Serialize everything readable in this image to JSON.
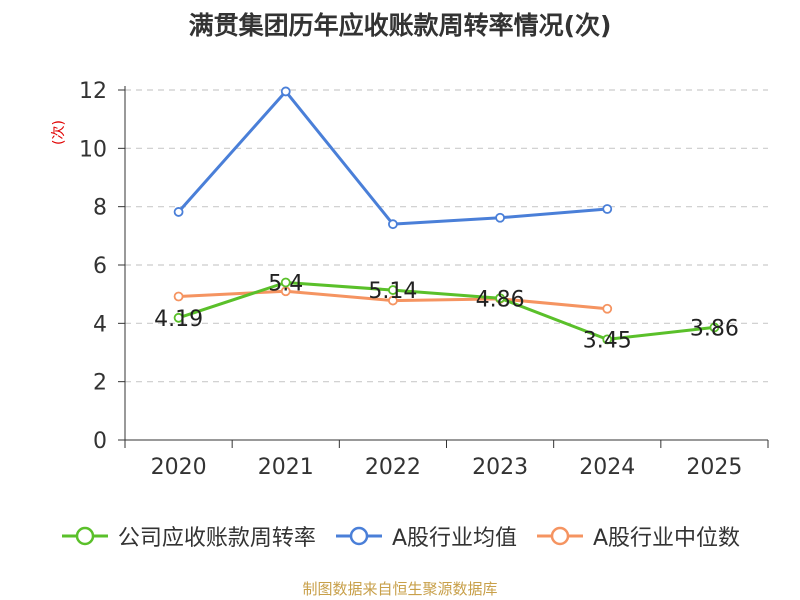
{
  "chart_data": {
    "type": "line",
    "title": "满贯集团历年应收账款周转率情况(次)",
    "ylabel": "(次)",
    "xlabel": "",
    "categories": [
      "2020",
      "2021",
      "2022",
      "2023",
      "2024",
      "2025"
    ],
    "ylim": [
      0,
      12
    ],
    "yticks": [
      0,
      2,
      4,
      6,
      8,
      10,
      12
    ],
    "grid": true,
    "legend_position": "bottom",
    "series": [
      {
        "name": "公司应收账款周转率",
        "color": "#5ac02a",
        "values": [
          4.19,
          5.4,
          5.14,
          4.86,
          3.45,
          3.86
        ],
        "data_labels": [
          "4.19",
          "5.4",
          "5.14",
          "4.86",
          "3.45",
          "3.86"
        ]
      },
      {
        "name": "A股行业均值",
        "color": "#4a7fd8",
        "values": [
          7.82,
          11.95,
          7.4,
          7.62,
          7.92,
          null
        ]
      },
      {
        "name": "A股行业中位数",
        "color": "#f59461",
        "values": [
          4.92,
          5.1,
          4.78,
          4.84,
          4.5,
          null
        ]
      }
    ],
    "source": "制图数据来自恒生聚源数据库"
  }
}
